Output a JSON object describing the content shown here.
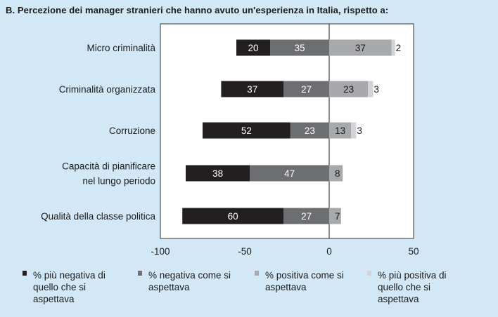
{
  "title": "B. Percezione dei manager stranieri che hanno avuto un'esperienza in Italia, rispetto a:",
  "chart_data": {
    "type": "bar",
    "orientation": "horizontal-stacked-diverging",
    "categories": [
      "Micro criminalità",
      "Criminalità organizzata",
      "Corruzione",
      "Capacità di pianificare\nnel lungo periodo",
      "Qualità della classe politica"
    ],
    "series": [
      {
        "name": "% più negativa di quello che si aspettava",
        "values": [
          -20,
          -37,
          -52,
          -38,
          -60
        ],
        "labels": [
          "20",
          "37",
          "52",
          "38",
          "60"
        ],
        "color": "#231f20",
        "label_color": "#ffffff"
      },
      {
        "name": "% negativa come si aspettava",
        "values": [
          -35,
          -27,
          -23,
          -47,
          -27
        ],
        "labels": [
          "35",
          "27",
          "23",
          "47",
          "27"
        ],
        "color": "#6d6e71",
        "label_color": "#ffffff"
      },
      {
        "name": "% positiva come si aspettava",
        "values": [
          37,
          23,
          13,
          8,
          7
        ],
        "labels": [
          "37",
          "23",
          "13",
          "8",
          "7"
        ],
        "color": "#a7a9ac",
        "label_color": "#1a1a1a"
      },
      {
        "name": "% più positiva di quello che si aspettava",
        "values": [
          2,
          3,
          3,
          0,
          0
        ],
        "labels": [
          "2",
          "3",
          "3",
          "",
          ""
        ],
        "color": "#d1d3d4",
        "label_color": "#1a1a1a"
      }
    ],
    "xlim": [
      -100,
      50
    ],
    "xticks": [
      -100,
      -50,
      0,
      50
    ],
    "xtick_labels": [
      "-100",
      "-50",
      "0",
      "50"
    ],
    "legend_position": "bottom"
  }
}
